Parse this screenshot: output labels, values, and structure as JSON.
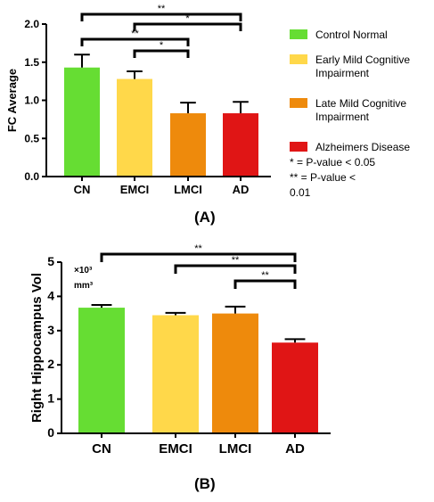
{
  "panels": {
    "a_label": "(A)",
    "b_label": "(B)"
  },
  "legend": {
    "items": [
      {
        "label_lines": [
          "Control Normal"
        ],
        "color": "#66dd33"
      },
      {
        "label_lines": [
          "Early Mild Cognitive",
          "Impairment"
        ],
        "color": "#ffd84a"
      },
      {
        "label_lines": [
          "Late Mild Cognitive",
          "Impairment"
        ],
        "color": "#ee8a0c"
      },
      {
        "label_lines": [
          "Alzheimers Disease"
        ],
        "color": "#e01515"
      }
    ],
    "notes": [
      "* = P-value < 0.05",
      "** = P-value <",
      "0.01"
    ]
  },
  "chart_data": [
    {
      "type": "bar",
      "panel": "(A)",
      "categories": [
        "CN",
        "EMCI",
        "LMCI",
        "AD"
      ],
      "values": [
        1.43,
        1.28,
        0.83,
        0.83
      ],
      "error": [
        0.17,
        0.1,
        0.14,
        0.15
      ],
      "colors": [
        "#66dd33",
        "#ffd84a",
        "#ee8a0c",
        "#e01515"
      ],
      "ylabel": "FC Average",
      "xlabel": "",
      "ylim": [
        0,
        2.0
      ],
      "yticks": [
        "0.0",
        "0.5",
        "1.0",
        "1.5",
        "2.0"
      ],
      "grid": false,
      "significance": [
        {
          "from": "CN",
          "to": "AD",
          "label": "**"
        },
        {
          "from": "EMCI",
          "to": "AD",
          "label": "*"
        },
        {
          "from": "CN",
          "to": "LMCI",
          "label": "**"
        },
        {
          "from": "EMCI",
          "to": "LMCI",
          "label": "*"
        }
      ]
    },
    {
      "type": "bar",
      "panel": "(B)",
      "categories": [
        "CN",
        "EMCI",
        "LMCI",
        "AD"
      ],
      "values": [
        3.67,
        3.45,
        3.5,
        2.65
      ],
      "error": [
        0.08,
        0.07,
        0.2,
        0.1
      ],
      "colors": [
        "#66dd33",
        "#ffd84a",
        "#ee8a0c",
        "#e01515"
      ],
      "ylabel": "Right Hippocampus Vol",
      "unit_lines": [
        "×10³",
        "mm³"
      ],
      "xlabel": "",
      "ylim": [
        0,
        5
      ],
      "yticks": [
        "0",
        "1",
        "2",
        "3",
        "4",
        "5"
      ],
      "grid": false,
      "significance": [
        {
          "from": "CN",
          "to": "AD",
          "label": "**"
        },
        {
          "from": "EMCI",
          "to": "AD",
          "label": "**"
        },
        {
          "from": "LMCI",
          "to": "AD",
          "label": "**"
        }
      ]
    }
  ]
}
